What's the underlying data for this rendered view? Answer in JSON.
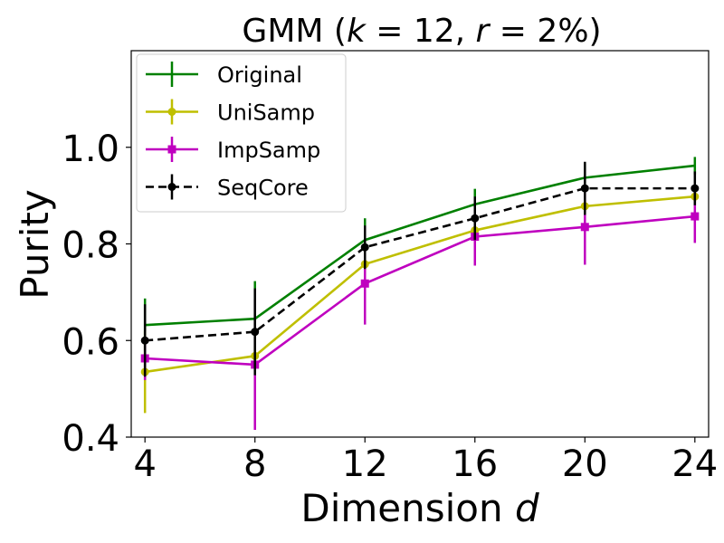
{
  "chart_data": {
    "type": "line",
    "title": "GMM (k = 12, r = 2%)",
    "title_parts": {
      "prefix": "GMM (",
      "k_var": "k",
      "k_val": " = 12, ",
      "r_var": "r",
      "r_val": " = 2%)"
    },
    "xlabel": "Dimension d",
    "xlabel_parts": {
      "text": "Dimension ",
      "var": "d"
    },
    "ylabel": "Purity",
    "x": [
      4,
      8,
      12,
      16,
      20,
      24
    ],
    "xlim": [
      3.5,
      24.5
    ],
    "ylim": [
      0.4,
      1.2
    ],
    "xticks": [
      4,
      8,
      12,
      16,
      20,
      24
    ],
    "yticks": [
      0.4,
      0.6,
      0.8,
      1.0
    ],
    "ytick_labels": [
      "0.4",
      "0.6",
      "0.8",
      "1.0"
    ],
    "legend_position": "top-left",
    "grid": false,
    "series": [
      {
        "name": "Original",
        "color": "#008000",
        "marker": "none",
        "dashed": false,
        "values": [
          0.632,
          0.645,
          0.808,
          0.882,
          0.937,
          0.962
        ],
        "errors": [
          0.055,
          0.078,
          0.045,
          0.032,
          0.03,
          0.018
        ]
      },
      {
        "name": "UniSamp",
        "color": "#bfbf00",
        "marker": "circle",
        "dashed": false,
        "values": [
          0.535,
          0.568,
          0.758,
          0.828,
          0.878,
          0.898
        ],
        "errors": [
          0.085,
          0.02,
          0.02,
          0.018,
          0.012,
          0.012
        ]
      },
      {
        "name": "ImpSamp",
        "color": "#bf00bf",
        "marker": "square",
        "dashed": false,
        "values": [
          0.563,
          0.55,
          0.718,
          0.815,
          0.835,
          0.857
        ],
        "errors": [
          0.045,
          0.135,
          0.085,
          0.06,
          0.078,
          0.055
        ]
      },
      {
        "name": "SeqCore",
        "color": "#000000",
        "marker": "circle",
        "dashed": true,
        "values": [
          0.6,
          0.618,
          0.793,
          0.853,
          0.915,
          0.915
        ],
        "errors": [
          0.075,
          0.09,
          0.045,
          0.045,
          0.055,
          0.035
        ]
      }
    ]
  }
}
